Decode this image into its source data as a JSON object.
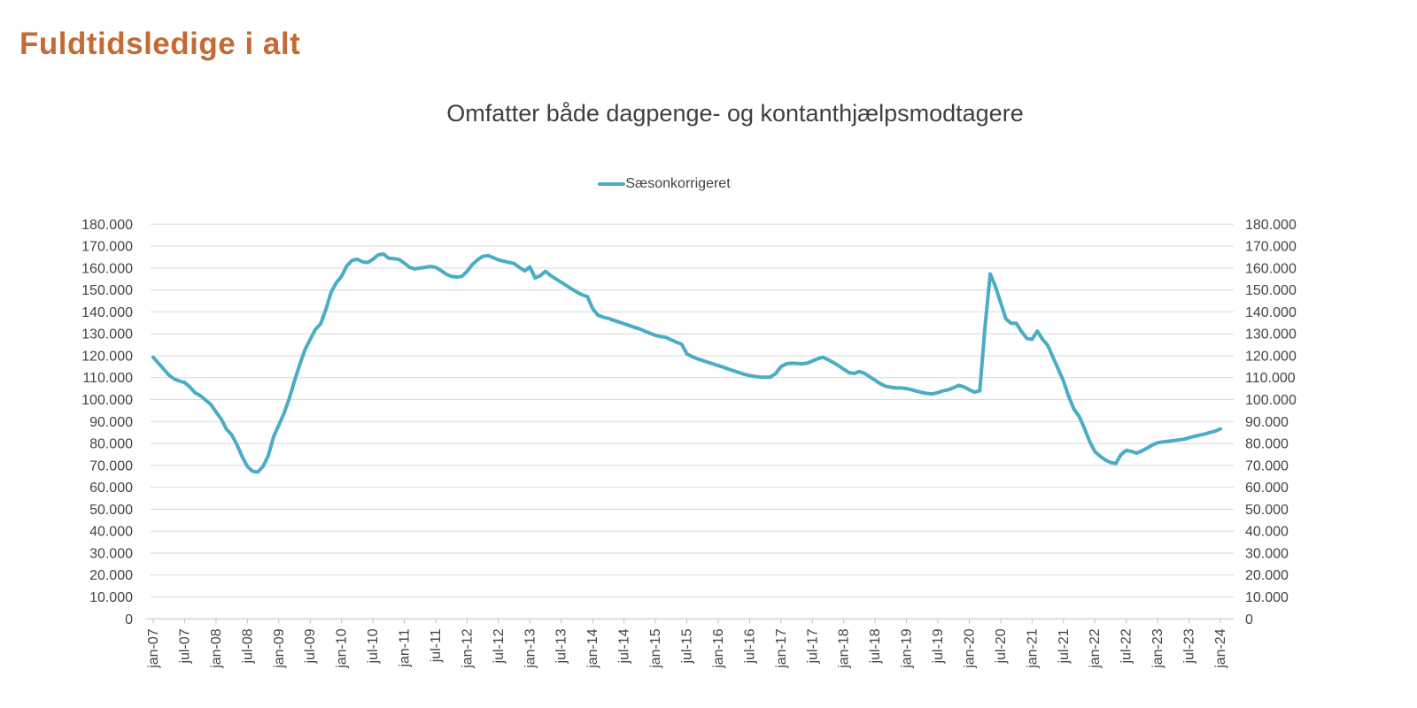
{
  "page": {
    "title": "Fuldtidsledige i alt"
  },
  "colors": {
    "title": "#C36A35",
    "subtitle": "#3F3F3F",
    "line": "#4BACC6",
    "grid": "#D9D9D9",
    "axis": "#BFBFBF",
    "ticks": "#444444"
  },
  "chart_data": {
    "type": "line",
    "title": "Omfatter både dagpenge- og kontanthjælpsmodtagere",
    "legend": {
      "position": "top-center",
      "entries": [
        {
          "label": "Sæsonkorrigeret",
          "color": "#4BACC6"
        }
      ]
    },
    "grid": "horizontal",
    "x_unit": "month",
    "x_range": [
      "jan-07",
      "jan-24"
    ],
    "x_tick_labels": [
      "jan-07",
      "jul-07",
      "jan-08",
      "jul-08",
      "jan-09",
      "jul-09",
      "jan-10",
      "jul-10",
      "jan-11",
      "jul-11",
      "jan-12",
      "jul-12",
      "jan-13",
      "jul-13",
      "jan-14",
      "jul-14",
      "jan-15",
      "jul-15",
      "jan-16",
      "jul-16",
      "jan-17",
      "jul-17",
      "jan-18",
      "jul-18",
      "jan-19",
      "jul-19",
      "jan-20",
      "jul-20",
      "jan-21",
      "jul-21",
      "jan-22",
      "jul-22",
      "jan-23",
      "jul-23",
      "jan-24"
    ],
    "ylim": [
      0,
      180000
    ],
    "y_tick_step": 10000,
    "y_tick_labels": [
      "0",
      "10.000",
      "20.000",
      "30.000",
      "40.000",
      "50.000",
      "60.000",
      "70.000",
      "80.000",
      "90.000",
      "100.000",
      "110.000",
      "120.000",
      "130.000",
      "140.000",
      "150.000",
      "160.000",
      "170.000",
      "180.000"
    ],
    "series": [
      {
        "name": "Sæsonkorrigeret",
        "start": "2007-01",
        "end": "2024-01",
        "interval": "monthly",
        "values": [
          119300,
          116600,
          113900,
          111200,
          109400,
          108500,
          107800,
          105800,
          103100,
          101800,
          99800,
          97800,
          94400,
          91100,
          86500,
          84000,
          79500,
          74000,
          69500,
          67300,
          67000,
          69500,
          74500,
          83000,
          88400,
          93700,
          100500,
          108500,
          115900,
          122700,
          127400,
          132000,
          134500,
          141000,
          148900,
          153300,
          156200,
          161000,
          163500,
          164000,
          162800,
          162500,
          164000,
          166000,
          166400,
          164500,
          164300,
          163900,
          162300,
          160300,
          159600,
          160000,
          160300,
          160700,
          160300,
          158900,
          157200,
          156200,
          155900,
          156200,
          158500,
          161600,
          163700,
          165300,
          165700,
          164700,
          163700,
          163100,
          162600,
          162000,
          160300,
          158700,
          160500,
          155500,
          156500,
          158500,
          156500,
          155000,
          153500,
          152000,
          150500,
          149000,
          147800,
          147000,
          141500,
          138500,
          137600,
          137000,
          136200,
          135400,
          134600,
          133800,
          133000,
          132200,
          131200,
          130200,
          129300,
          128700,
          128400,
          127300,
          126200,
          125300,
          120900,
          119600,
          118600,
          117900,
          117000,
          116300,
          115500,
          114800,
          113900,
          113100,
          112300,
          111500,
          111000,
          110600,
          110300,
          110200,
          110300,
          111900,
          115000,
          116300,
          116600,
          116500,
          116300,
          116600,
          117600,
          118600,
          119300,
          118200,
          116900,
          115500,
          113900,
          112300,
          111900,
          112800,
          111900,
          110400,
          108800,
          107200,
          106100,
          105600,
          105300,
          105300,
          105000,
          104500,
          103800,
          103200,
          102800,
          102600,
          103200,
          104000,
          104500,
          105400,
          106500,
          105800,
          104500,
          103400,
          104000,
          133000,
          157300,
          151600,
          144200,
          136800,
          134800,
          134800,
          131000,
          127900,
          127500,
          131200,
          127500,
          124700,
          119300,
          113900,
          108500,
          101500,
          95700,
          92400,
          87000,
          81000,
          76300,
          74200,
          72500,
          71300,
          70900,
          74900,
          76900,
          76300,
          75600,
          76600,
          77900,
          79300,
          80300,
          80700,
          81000,
          81300,
          81600,
          81900,
          82600,
          83200,
          83800,
          84300,
          85000,
          85600,
          86600
        ]
      }
    ]
  }
}
